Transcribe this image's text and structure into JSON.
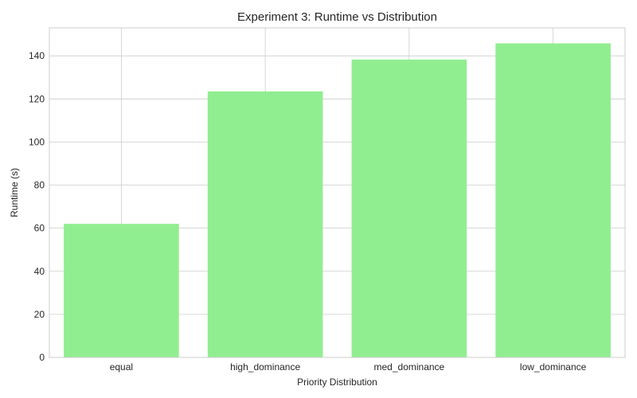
{
  "chart_data": {
    "type": "bar",
    "title": "Experiment 3: Runtime vs Distribution",
    "xlabel": "Priority Distribution",
    "ylabel": "Runtime (s)",
    "categories": [
      "equal",
      "high_dominance",
      "med_dominance",
      "low_dominance"
    ],
    "values": [
      62,
      123.5,
      138.3,
      145.8
    ],
    "ylim": [
      0,
      153
    ],
    "yticks": [
      0,
      20,
      40,
      60,
      80,
      100,
      120,
      140
    ],
    "bar_color": "#90ee90",
    "grid": true,
    "legend": "none"
  }
}
